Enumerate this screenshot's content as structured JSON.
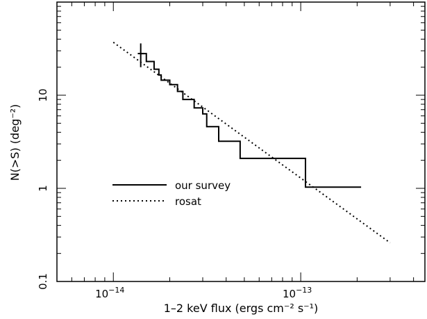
{
  "chart_data": {
    "type": "line",
    "x_scale": "log",
    "y_scale": "log",
    "xlim": [
      5e-15,
      4.6e-13
    ],
    "ylim": [
      0.1,
      100
    ],
    "xlabel": "1–2 keV flux (ergs cm⁻² s⁻¹)",
    "ylabel": "N(>S) (deg⁻²)",
    "x_tick_labels": [
      {
        "value": 1e-14,
        "base": "10",
        "exp": "−14"
      },
      {
        "value": 1e-13,
        "base": "10",
        "exp": "−13"
      }
    ],
    "y_tick_labels": [
      {
        "value": 0.1,
        "label": "0.1"
      },
      {
        "value": 1,
        "label": "1"
      },
      {
        "value": 10,
        "label": "10"
      }
    ],
    "legend_placement": "center-left",
    "series": [
      {
        "name": "our survey",
        "style": "solid",
        "step": true,
        "points": [
          [
            1.4e-14,
            28
          ],
          [
            1.5e-14,
            28
          ],
          [
            1.5e-14,
            23
          ],
          [
            1.65e-14,
            23
          ],
          [
            1.65e-14,
            19
          ],
          [
            1.75e-14,
            19
          ],
          [
            1.75e-14,
            16.5
          ],
          [
            1.8e-14,
            16.5
          ],
          [
            1.8e-14,
            14.5
          ],
          [
            2e-14,
            14.5
          ],
          [
            2e-14,
            13
          ],
          [
            2.2e-14,
            13
          ],
          [
            2.2e-14,
            11
          ],
          [
            2.35e-14,
            11
          ],
          [
            2.35e-14,
            9
          ],
          [
            2.7e-14,
            9
          ],
          [
            2.7e-14,
            7.3
          ],
          [
            3e-14,
            7.3
          ],
          [
            3e-14,
            6.3
          ],
          [
            3.15e-14,
            6.3
          ],
          [
            3.15e-14,
            4.6
          ],
          [
            3.65e-14,
            4.6
          ],
          [
            3.65e-14,
            3.2
          ],
          [
            4.75e-14,
            3.2
          ],
          [
            4.75e-14,
            2.1
          ],
          [
            1.06e-13,
            2.1
          ],
          [
            1.06e-13,
            1.03
          ],
          [
            2.1e-13,
            1.03
          ]
        ],
        "error_bar": {
          "x": 1.4e-14,
          "y_low": 20,
          "y_high": 36,
          "x_low": 1.35e-14,
          "x_high": 1.45e-14
        }
      },
      {
        "name": "rosat",
        "style": "dotted",
        "points": [
          [
            1e-14,
            37
          ],
          [
            3e-13,
            0.26
          ]
        ]
      }
    ]
  }
}
